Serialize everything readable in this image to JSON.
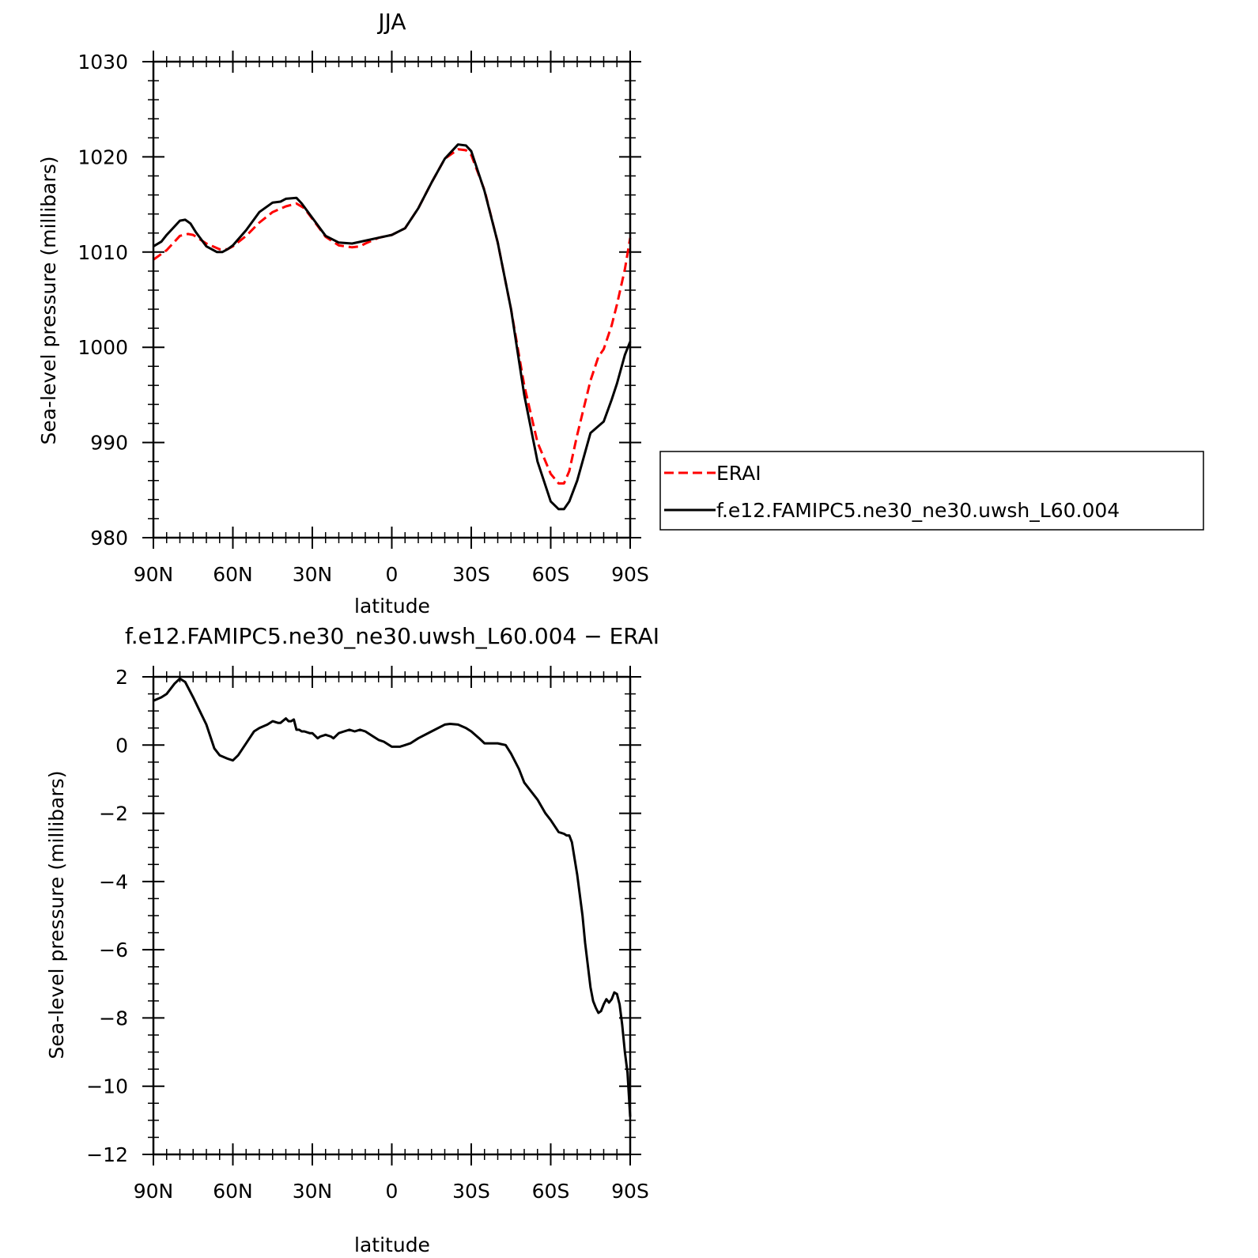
{
  "chart_data": [
    {
      "type": "line",
      "title": "JJA",
      "xlabel": "latitude",
      "ylabel": "Sea-level pressure (millibars)",
      "x_ticks": [
        "90N",
        "60N",
        "30N",
        "0",
        "30S",
        "60S",
        "90S"
      ],
      "x_tick_values": [
        90,
        60,
        30,
        0,
        -30,
        -60,
        -90
      ],
      "xlim": [
        90,
        -90
      ],
      "y_ticks": [
        "980",
        "990",
        "1000",
        "1010",
        "1020",
        "1030"
      ],
      "y_tick_values": [
        980,
        990,
        1000,
        1010,
        1020,
        1030
      ],
      "ylim": [
        980,
        1030
      ],
      "grid": false,
      "legend_position": "right",
      "series": [
        {
          "name": "ERAI",
          "color": "#ff0000",
          "dash": "dashed",
          "x": [
            90,
            85,
            80,
            77,
            75,
            70,
            65,
            62,
            60,
            55,
            50,
            45,
            40,
            36,
            33,
            30,
            25,
            20,
            15,
            12,
            10,
            5,
            0,
            -5,
            -10,
            -15,
            -20,
            -25,
            -28,
            -30,
            -35,
            -40,
            -45,
            -50,
            -55,
            -60,
            -63,
            -65,
            -67,
            -70,
            -75,
            -78,
            -80,
            -83,
            -85,
            -88,
            -90
          ],
          "y": [
            1009.2,
            1010.2,
            1011.7,
            1011.9,
            1011.8,
            1010.9,
            1010.3,
            1010.3,
            1010.6,
            1011.7,
            1013.1,
            1014.2,
            1014.8,
            1015.1,
            1014.6,
            1013.5,
            1011.6,
            1010.7,
            1010.5,
            1010.6,
            1010.9,
            1011.5,
            1011.8,
            1012.5,
            1014.6,
            1017.3,
            1019.8,
            1020.8,
            1020.7,
            1020.2,
            1016.5,
            1011,
            1004,
            996,
            990,
            986.7,
            985.7,
            985.7,
            987,
            990.8,
            996.5,
            999,
            999.8,
            1002.3,
            1004.5,
            1008.2,
            1011.5
          ]
        },
        {
          "name": "f.e12.FAMIPC5.ne30_ne30.uwsh_L60.004",
          "color": "#000000",
          "dash": "solid",
          "x": [
            90,
            87,
            85,
            80,
            78,
            76,
            74,
            70,
            66,
            64,
            62,
            60,
            55,
            50,
            45,
            42,
            40,
            36,
            34,
            30,
            25,
            20,
            15,
            10,
            5,
            0,
            -5,
            -10,
            -15,
            -20,
            -25,
            -28,
            -30,
            -35,
            -40,
            -45,
            -50,
            -55,
            -60,
            -63,
            -65,
            -67,
            -70,
            -75,
            -80,
            -83,
            -85,
            -88,
            -90
          ],
          "y": [
            1010.6,
            1011.1,
            1011.8,
            1013.3,
            1013.4,
            1013,
            1012.1,
            1010.6,
            1010,
            1010,
            1010.3,
            1010.7,
            1012.3,
            1014.2,
            1015.2,
            1015.3,
            1015.6,
            1015.7,
            1015.1,
            1013.6,
            1011.7,
            1011,
            1010.9,
            1011.2,
            1011.5,
            1011.8,
            1012.5,
            1014.6,
            1017.3,
            1019.8,
            1021.3,
            1021.2,
            1020.6,
            1016.4,
            1011,
            1004,
            995,
            988,
            983.8,
            983,
            983,
            983.8,
            986,
            991,
            992.2,
            994.5,
            996.2,
            999.2,
            1000.6
          ]
        }
      ]
    },
    {
      "type": "line",
      "title": "f.e12.FAMIPC5.ne30_ne30.uwsh_L60.004  −  ERAI",
      "xlabel": "latitude",
      "ylabel": "Sea-level pressure (millibars)",
      "x_ticks": [
        "90N",
        "60N",
        "30N",
        "0",
        "30S",
        "60S",
        "90S"
      ],
      "x_tick_values": [
        90,
        60,
        30,
        0,
        -30,
        -60,
        -90
      ],
      "xlim": [
        90,
        -90
      ],
      "y_ticks": [
        "−12",
        "−10",
        "−8",
        "−6",
        "−4",
        "−2",
        "0",
        "2"
      ],
      "y_tick_values": [
        -12,
        -10,
        -8,
        -6,
        -4,
        -2,
        0,
        2
      ],
      "ylim": [
        -12,
        2
      ],
      "grid": false,
      "series": [
        {
          "color": "#000000",
          "dash": "solid",
          "x": [
            90,
            87,
            85,
            82,
            80,
            78,
            75,
            70,
            67,
            65,
            62,
            60,
            58,
            55,
            52,
            50,
            47,
            45,
            43,
            42,
            40,
            39,
            38,
            37,
            36,
            35,
            34,
            33,
            31,
            30,
            28,
            27,
            25,
            23,
            22,
            20,
            18,
            16,
            14,
            12,
            10,
            7,
            5,
            3,
            0,
            -3,
            -5,
            -7,
            -10,
            -15,
            -20,
            -22,
            -25,
            -28,
            -30,
            -33,
            -35,
            -38,
            -40,
            -43,
            -45,
            -48,
            -50,
            -55,
            -58,
            -60,
            -63,
            -65,
            -66,
            -67,
            -68,
            -70,
            -72,
            -73,
            -75,
            -76,
            -77,
            -78,
            -79,
            -80,
            -81,
            -82,
            -83,
            -84,
            -85,
            -86,
            -87,
            -88,
            -89,
            -90
          ],
          "y": [
            1.3,
            1.4,
            1.5,
            1.8,
            1.95,
            1.85,
            1.4,
            0.6,
            -0.1,
            -0.3,
            -0.4,
            -0.45,
            -0.3,
            0.05,
            0.4,
            0.5,
            0.6,
            0.7,
            0.65,
            0.65,
            0.78,
            0.7,
            0.7,
            0.75,
            0.45,
            0.45,
            0.4,
            0.4,
            0.35,
            0.35,
            0.2,
            0.25,
            0.3,
            0.25,
            0.2,
            0.35,
            0.4,
            0.45,
            0.4,
            0.45,
            0.4,
            0.25,
            0.15,
            0.1,
            -0.05,
            -0.05,
            0,
            0.05,
            0.2,
            0.4,
            0.6,
            0.62,
            0.6,
            0.5,
            0.4,
            0.2,
            0.05,
            0.05,
            0.05,
            0,
            -0.25,
            -0.7,
            -1.1,
            -1.6,
            -2.0,
            -2.2,
            -2.55,
            -2.6,
            -2.65,
            -2.65,
            -2.85,
            -3.8,
            -5.0,
            -5.8,
            -7.1,
            -7.5,
            -7.7,
            -7.85,
            -7.8,
            -7.6,
            -7.45,
            -7.55,
            -7.45,
            -7.25,
            -7.3,
            -7.6,
            -8.2,
            -9.0,
            -9.6,
            -10.9
          ]
        }
      ]
    }
  ]
}
